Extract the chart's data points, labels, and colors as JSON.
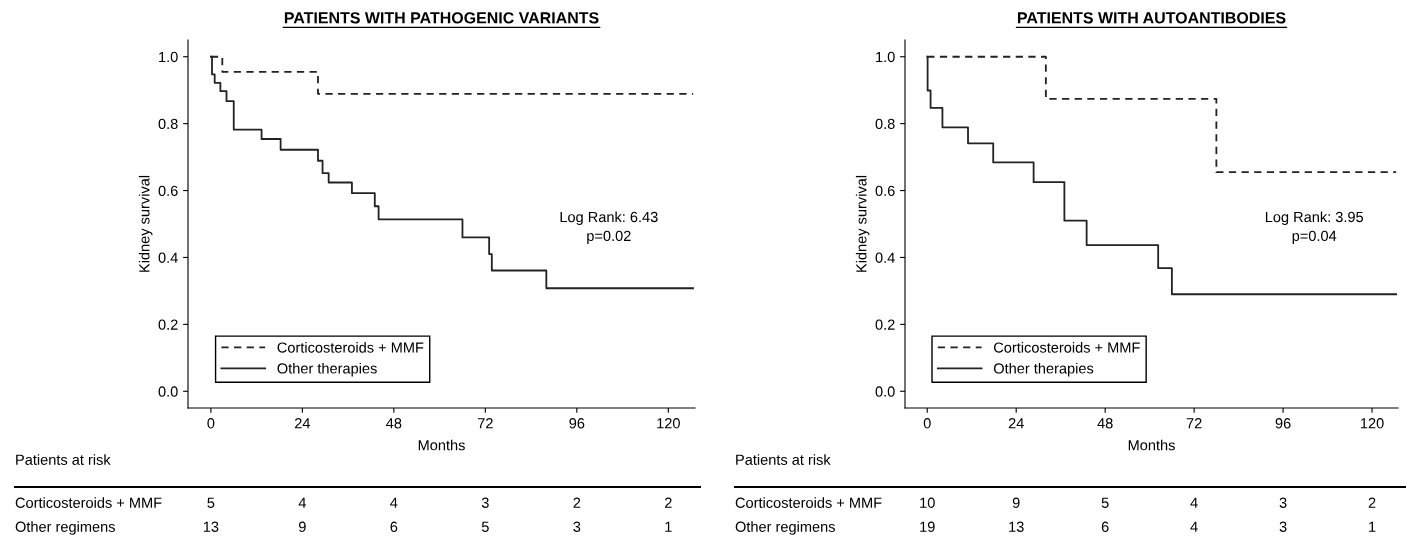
{
  "chart_data": [
    {
      "type": "step",
      "title": "PATIENTS WITH PATHOGENIC VARIANTS",
      "xlabel": "Months",
      "ylabel": "Kidney survival",
      "xlim": [
        -6,
        127
      ],
      "ylim": [
        -0.05,
        1.05
      ],
      "xticks": [
        0,
        24,
        48,
        72,
        96,
        120
      ],
      "yticks": [
        {
          "value": 0,
          "label": "0.0"
        },
        {
          "value": 0.2,
          "label": "0.2"
        },
        {
          "value": 0.4,
          "label": "0.4"
        },
        {
          "value": 0.6,
          "label": "0.6"
        },
        {
          "value": 0.8,
          "label": "0.8"
        },
        {
          "value": 1,
          "label": "1.0"
        }
      ],
      "legend": "bottom left",
      "grid": false,
      "series": [
        {
          "name": "Corticosteroids + MMF",
          "color": "#222222",
          "line_style": "dashed",
          "x": [
            0,
            3,
            28.1,
            126.5
          ],
          "values": [
            1.0,
            0.955,
            0.889,
            0.889
          ]
        },
        {
          "name": "Other therapies",
          "color": "#222222",
          "line_style": "solid",
          "x": [
            0,
            0.3,
            1,
            2.5,
            4.1,
            6,
            13.3,
            18.3,
            28.1,
            29.3,
            30.9,
            37,
            43,
            44,
            66,
            73,
            73.7,
            88,
            126.5
          ],
          "values": [
            1.0,
            0.947,
            0.922,
            0.897,
            0.867,
            0.782,
            0.754,
            0.722,
            0.689,
            0.652,
            0.624,
            0.592,
            0.553,
            0.514,
            0.46,
            0.41,
            0.361,
            0.308,
            0.308
          ]
        }
      ],
      "annotations": [
        "Log Rank: 6.43\np=0.02",
        "Patients at risk",
        "Corticosteroids + MMF",
        "5",
        "4",
        "4",
        "3",
        "2",
        "2",
        "Other regimens",
        "13",
        "9",
        "6",
        "5",
        "3",
        "1"
      ]
    },
    {
      "type": "step",
      "title": "PATIENTS WITH AUTOANTIBODIES",
      "xlabel": "Months",
      "ylabel": "Kidney survival",
      "xlim": [
        -6,
        127
      ],
      "ylim": [
        -0.05,
        1.05
      ],
      "xticks": [
        0,
        24,
        48,
        72,
        96,
        120
      ],
      "yticks": [
        {
          "value": 0,
          "label": "0.0"
        },
        {
          "value": 0.2,
          "label": "0.2"
        },
        {
          "value": 0.4,
          "label": "0.4"
        },
        {
          "value": 0.6,
          "label": "0.6"
        },
        {
          "value": 0.8,
          "label": "0.8"
        },
        {
          "value": 1,
          "label": "1.0"
        }
      ],
      "legend": "bottom left",
      "grid": false,
      "series": [
        {
          "name": "Corticosteroids + MMF",
          "color": "#222222",
          "line_style": "dashed",
          "x": [
            0,
            32,
            78,
            126.5
          ],
          "values": [
            1.0,
            0.874,
            0.655,
            0.655
          ]
        },
        {
          "name": "Other therapies",
          "color": "#222222",
          "line_style": "solid",
          "x": [
            0,
            0.1,
            0.9,
            4.1,
            11,
            17.8,
            28.7,
            37,
            43,
            62.3,
            66,
            126.5
          ],
          "values": [
            1.0,
            0.899,
            0.847,
            0.789,
            0.741,
            0.684,
            0.625,
            0.51,
            0.437,
            0.368,
            0.29,
            0.29
          ]
        }
      ],
      "annotations": [
        "Log Rank: 3.95\np=0.04",
        "Patients at risk",
        "Corticosteroids + MMF",
        "10",
        "9",
        "5",
        "4",
        "3",
        "2",
        "Other regimens",
        "19",
        "13",
        "6",
        "4",
        "3",
        "1"
      ]
    }
  ]
}
